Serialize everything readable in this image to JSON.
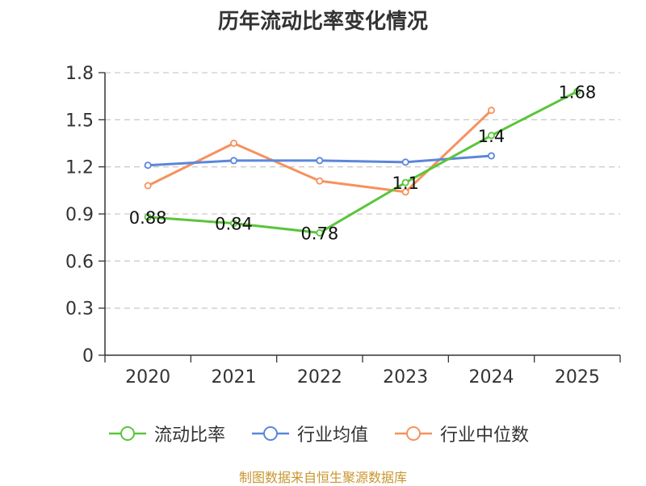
{
  "chart_data": {
    "type": "line",
    "title": "历年流动比率变化情况",
    "categories": [
      "2020",
      "2021",
      "2022",
      "2023",
      "2024",
      "2025"
    ],
    "ylim": [
      0,
      1.8
    ],
    "yticks": [
      "0",
      "0.3",
      "0.6",
      "0.9",
      "1.2",
      "1.5",
      "1.8"
    ],
    "grid": true,
    "legend_position": "bottom",
    "series": [
      {
        "name": "流动比率",
        "color": "#5ac53a",
        "values": [
          0.88,
          0.84,
          0.78,
          1.1,
          1.4,
          1.68
        ],
        "labels": [
          "0.88",
          "0.84",
          "0.78",
          "1.1",
          "1.4",
          "1.68"
        ]
      },
      {
        "name": "行业均值",
        "color": "#5b86dc",
        "values": [
          1.21,
          1.24,
          1.24,
          1.23,
          1.27,
          null
        ]
      },
      {
        "name": "行业中位数",
        "color": "#f5925e",
        "values": [
          1.08,
          1.35,
          1.11,
          1.04,
          1.56,
          null
        ]
      }
    ]
  },
  "footer": "制图数据来自恒生聚源数据库"
}
